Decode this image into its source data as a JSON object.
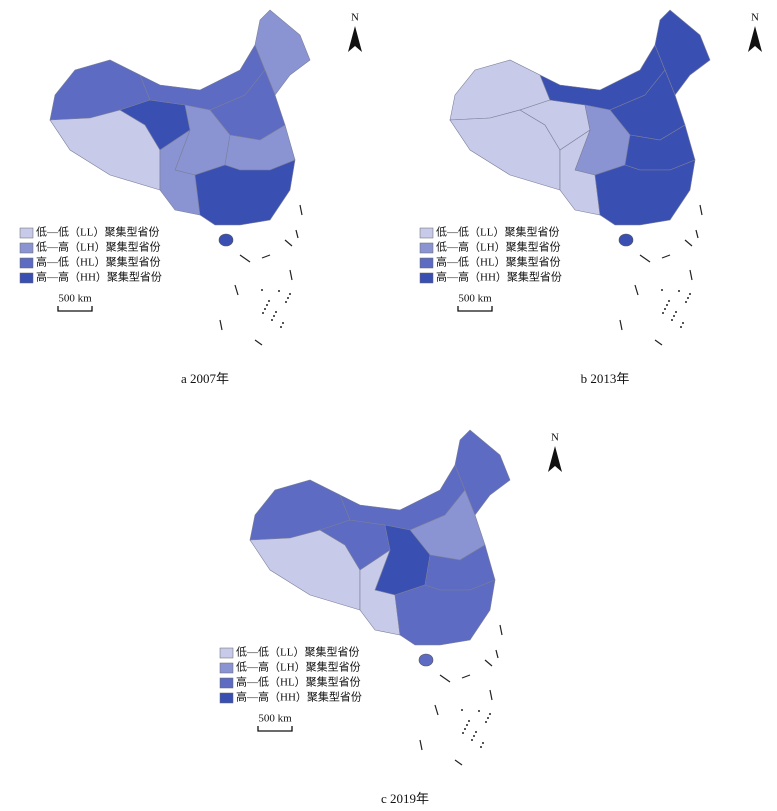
{
  "panels": [
    {
      "caption": "a 2007年",
      "north": "N",
      "scale": "500 km",
      "legend": [
        "低—低（LL）聚集型省份",
        "低—高（LH）聚集型省份",
        "高—低（HL）聚集型省份",
        "高—高（HH）聚集型省份"
      ]
    },
    {
      "caption": "b 2013年",
      "north": "N",
      "scale": "500 km",
      "legend": [
        "低—低（LL）聚集型省份",
        "低—高（LH）聚集型省份",
        "高—低（HL）聚集型省份",
        "高—高（HH）聚集型省份"
      ]
    },
    {
      "caption": "c 2019年",
      "north": "N",
      "scale": "500 km",
      "legend": [
        "低—低（LL）聚集型省份",
        "低—高（LH）聚集型省份",
        "高—低（HL）聚集型省份",
        "高—高（HH）聚集型省份"
      ]
    }
  ]
}
